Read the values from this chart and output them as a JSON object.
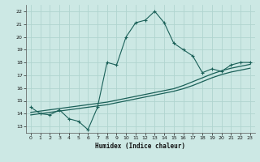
{
  "xlabel": "Humidex (Indice chaleur)",
  "bg_color": "#cce8e4",
  "grid_color": "#b0d4cf",
  "line_color": "#1a6058",
  "xlim": [
    -0.5,
    23.5
  ],
  "ylim": [
    12.5,
    22.5
  ],
  "xticks": [
    0,
    1,
    2,
    3,
    4,
    5,
    6,
    7,
    8,
    9,
    10,
    11,
    12,
    13,
    14,
    15,
    16,
    17,
    18,
    19,
    20,
    21,
    22,
    23
  ],
  "yticks": [
    13,
    14,
    15,
    16,
    17,
    18,
    19,
    20,
    21,
    22
  ],
  "curve1_x": [
    0,
    1,
    2,
    3,
    4,
    5,
    6,
    7,
    8,
    9,
    10,
    11,
    12,
    13,
    14,
    15,
    16,
    17,
    18,
    19,
    20,
    21,
    22,
    23
  ],
  "curve1_y": [
    14.5,
    14.0,
    13.9,
    14.3,
    13.6,
    13.4,
    12.75,
    14.5,
    18.0,
    17.8,
    20.0,
    21.1,
    21.3,
    22.0,
    21.1,
    19.5,
    19.0,
    18.5,
    17.2,
    17.5,
    17.3,
    17.8,
    18.0,
    18.0
  ],
  "curve2_x": [
    0,
    1,
    2,
    3,
    4,
    5,
    6,
    7,
    8,
    9,
    10,
    11,
    12,
    13,
    14,
    15,
    16,
    17,
    18,
    19,
    20,
    21,
    22,
    23
  ],
  "curve2_y": [
    13.9,
    14.0,
    14.1,
    14.2,
    14.3,
    14.4,
    14.5,
    14.6,
    14.7,
    14.85,
    15.0,
    15.15,
    15.3,
    15.45,
    15.6,
    15.75,
    15.95,
    16.2,
    16.5,
    16.8,
    17.05,
    17.25,
    17.4,
    17.55
  ],
  "curve3_x": [
    0,
    1,
    2,
    3,
    4,
    5,
    6,
    7,
    8,
    9,
    10,
    11,
    12,
    13,
    14,
    15,
    16,
    17,
    18,
    19,
    20,
    21,
    22,
    23
  ],
  "curve3_y": [
    14.1,
    14.2,
    14.3,
    14.4,
    14.5,
    14.6,
    14.7,
    14.8,
    14.9,
    15.05,
    15.2,
    15.35,
    15.5,
    15.65,
    15.8,
    15.95,
    16.2,
    16.5,
    16.8,
    17.1,
    17.35,
    17.55,
    17.7,
    17.85
  ]
}
